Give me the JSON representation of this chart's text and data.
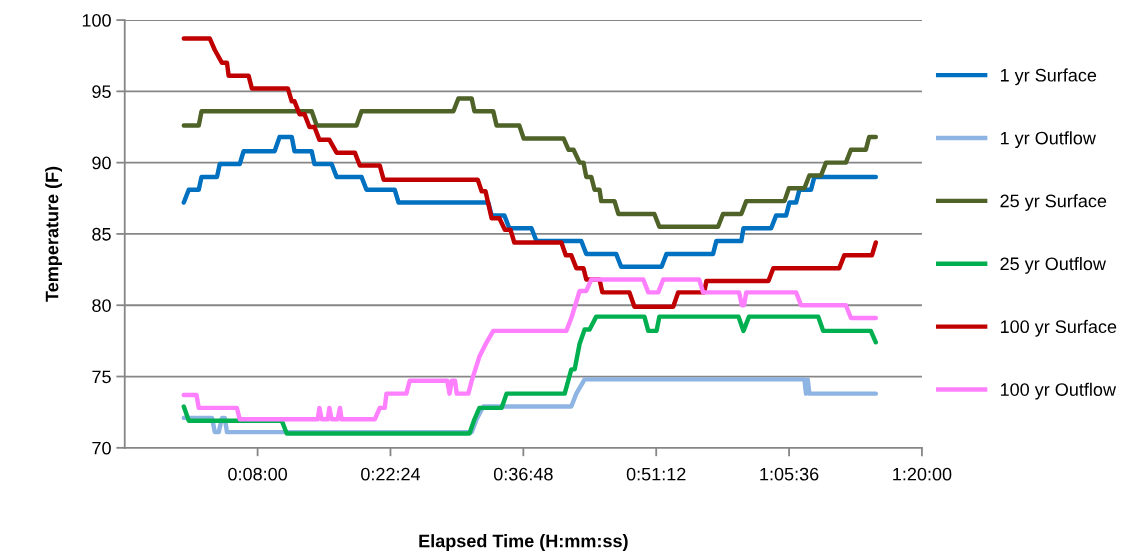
{
  "chart_data": {
    "type": "line",
    "xlabel": "Elapsed Time (H:mm:ss)",
    "ylabel": "Temperature (F)",
    "xlim": [
      -0.10667,
      1.33333
    ],
    "xticks": [
      {
        "value": 0.13333,
        "label": "0:08:00"
      },
      {
        "value": 0.37333,
        "label": "0:22:24"
      },
      {
        "value": 0.61333,
        "label": "0:36:48"
      },
      {
        "value": 0.85333,
        "label": "0:51:12"
      },
      {
        "value": 1.09333,
        "label": "1:05:36"
      },
      {
        "value": 1.33333,
        "label": "1:20:00"
      }
    ],
    "ylim": [
      70,
      100
    ],
    "yticks": [
      70,
      75,
      80,
      85,
      90,
      95,
      100
    ],
    "grid": "y",
    "legend": "right",
    "marker": "none",
    "line_style": "solid",
    "series": [
      {
        "name": "1 yr Surface",
        "color": "#0070c0",
        "x": [
          0,
          0.009,
          0.027,
          0.032,
          0.06,
          0.065,
          0.101,
          0.108,
          0.164,
          0.173,
          0.195,
          0.2,
          0.231,
          0.236,
          0.267,
          0.276,
          0.321,
          0.33,
          0.381,
          0.388,
          0.55,
          0.556,
          0.579,
          0.588,
          0.628,
          0.637,
          0.718,
          0.727,
          0.781,
          0.79,
          0.863,
          0.872,
          0.956,
          0.962,
          1.007,
          1.011,
          1.061,
          1.07,
          1.088,
          1.094,
          1.106,
          1.112,
          1.133,
          1.139,
          1.25
        ],
        "values": [
          87.2,
          88.1,
          88.1,
          89.0,
          89.0,
          89.9,
          89.9,
          90.8,
          90.8,
          91.8,
          91.8,
          90.8,
          90.8,
          89.9,
          89.9,
          89.0,
          89.0,
          88.1,
          88.1,
          87.2,
          87.2,
          86.3,
          86.3,
          85.4,
          85.4,
          84.5,
          84.5,
          83.6,
          83.6,
          82.7,
          82.7,
          83.6,
          83.6,
          84.5,
          84.5,
          85.4,
          85.4,
          86.3,
          86.3,
          87.2,
          87.2,
          88.1,
          88.1,
          89.0,
          89.0
        ]
      },
      {
        "name": "1 yr Outflow",
        "color": "#8eb4e3",
        "x": [
          0,
          0.051,
          0.056,
          0.063,
          0.069,
          0.074,
          0.078,
          0.52,
          0.529,
          0.541,
          0.7,
          0.709,
          0.724,
          1.121,
          1.124,
          1.127,
          1.13,
          1.25
        ],
        "values": [
          72.1,
          72.1,
          71.1,
          71.1,
          72.1,
          72.1,
          71.1,
          71.1,
          72.0,
          72.9,
          72.9,
          73.8,
          74.8,
          74.8,
          73.8,
          74.8,
          73.8,
          73.8
        ]
      },
      {
        "name": "25 yr Surface",
        "color": "#4f6228",
        "x": [
          0,
          0.027,
          0.032,
          0.231,
          0.24,
          0.312,
          0.321,
          0.487,
          0.496,
          0.52,
          0.525,
          0.559,
          0.565,
          0.606,
          0.614,
          0.686,
          0.695,
          0.704,
          0.715,
          0.722,
          0.727,
          0.736,
          0.742,
          0.751,
          0.754,
          0.778,
          0.785,
          0.85,
          0.859,
          0.965,
          0.974,
          1.007,
          1.016,
          1.085,
          1.093,
          1.121,
          1.13,
          1.151,
          1.16,
          1.196,
          1.205,
          1.232,
          1.238,
          1.25
        ],
        "values": [
          92.6,
          92.6,
          93.6,
          93.6,
          92.6,
          92.6,
          93.6,
          93.6,
          94.5,
          94.5,
          93.6,
          93.6,
          92.6,
          92.6,
          91.7,
          91.7,
          90.9,
          90.9,
          90.0,
          90.0,
          89.0,
          89.0,
          88.1,
          88.1,
          87.3,
          87.3,
          86.4,
          86.4,
          85.5,
          85.5,
          86.4,
          86.4,
          87.3,
          87.3,
          88.2,
          88.2,
          89.1,
          89.1,
          90.0,
          90.0,
          90.9,
          90.9,
          91.8,
          91.8
        ]
      },
      {
        "name": "25 yr Outflow",
        "color": "#00b050",
        "x": [
          0,
          0.009,
          0.177,
          0.186,
          0.516,
          0.525,
          0.534,
          0.574,
          0.583,
          0.688,
          0.7,
          0.706,
          0.715,
          0.724,
          0.733,
          0.745,
          0.832,
          0.839,
          0.854,
          0.859,
          1.002,
          1.011,
          1.021,
          1.146,
          1.155,
          1.241,
          1.25
        ],
        "values": [
          72.9,
          71.9,
          71.9,
          71.0,
          71.0,
          72.0,
          72.8,
          72.8,
          73.8,
          73.8,
          75.5,
          75.5,
          77.3,
          78.3,
          78.3,
          79.2,
          79.2,
          78.2,
          78.2,
          79.2,
          79.2,
          78.2,
          79.2,
          79.2,
          78.2,
          78.2,
          77.4
        ]
      },
      {
        "name": "100 yr Surface",
        "color": "#c00000",
        "x": [
          0,
          0.047,
          0.056,
          0.069,
          0.078,
          0.081,
          0.117,
          0.123,
          0.188,
          0.195,
          0.2,
          0.209,
          0.218,
          0.227,
          0.236,
          0.245,
          0.263,
          0.276,
          0.309,
          0.318,
          0.354,
          0.361,
          0.531,
          0.538,
          0.545,
          0.556,
          0.57,
          0.58,
          0.59,
          0.597,
          0.682,
          0.69,
          0.7,
          0.709,
          0.722,
          0.727,
          0.751,
          0.756,
          0.805,
          0.814,
          0.884,
          0.893,
          0.94,
          0.944,
          1.056,
          1.065,
          1.184,
          1.193,
          1.243,
          1.25
        ],
        "values": [
          98.7,
          98.7,
          97.9,
          97.0,
          97.0,
          96.1,
          96.1,
          95.2,
          95.2,
          94.3,
          94.3,
          93.4,
          93.4,
          92.5,
          92.5,
          91.6,
          91.6,
          90.7,
          90.7,
          89.8,
          89.8,
          88.8,
          88.8,
          88.0,
          88.0,
          86.1,
          86.1,
          85.3,
          85.3,
          84.4,
          84.4,
          83.5,
          83.5,
          82.6,
          82.6,
          81.8,
          81.8,
          80.9,
          80.9,
          79.9,
          79.9,
          80.9,
          80.9,
          81.7,
          81.7,
          82.6,
          82.6,
          83.5,
          83.5,
          84.4
        ]
      },
      {
        "name": "100 yr Outflow",
        "color": "#ff80ff",
        "x": [
          0,
          0.023,
          0.027,
          0.096,
          0.101,
          0.242,
          0.245,
          0.249,
          0.26,
          0.263,
          0.267,
          0.278,
          0.282,
          0.285,
          0.345,
          0.354,
          0.363,
          0.366,
          0.402,
          0.408,
          0.476,
          0.48,
          0.484,
          0.49,
          0.493,
          0.514,
          0.52,
          0.534,
          0.547,
          0.559,
          0.691,
          0.7,
          0.715,
          0.727,
          0.736,
          0.83,
          0.839,
          0.857,
          0.866,
          0.931,
          0.938,
          1.003,
          1.008,
          1.012,
          1.016,
          1.106,
          1.115,
          1.196,
          1.205,
          1.25
        ],
        "values": [
          73.7,
          73.7,
          72.8,
          72.8,
          72.0,
          72.0,
          72.8,
          72.0,
          72.0,
          72.8,
          72.0,
          72.0,
          72.8,
          72.0,
          72.0,
          72.8,
          72.8,
          73.8,
          73.8,
          74.7,
          74.7,
          73.8,
          74.7,
          74.7,
          73.8,
          73.8,
          74.7,
          76.4,
          77.4,
          78.2,
          78.2,
          79.1,
          81.0,
          81.0,
          81.8,
          81.8,
          80.9,
          80.9,
          81.8,
          81.8,
          80.9,
          80.9,
          80.0,
          80.0,
          80.9,
          80.9,
          80.0,
          80.0,
          79.1,
          79.1
        ]
      }
    ]
  }
}
